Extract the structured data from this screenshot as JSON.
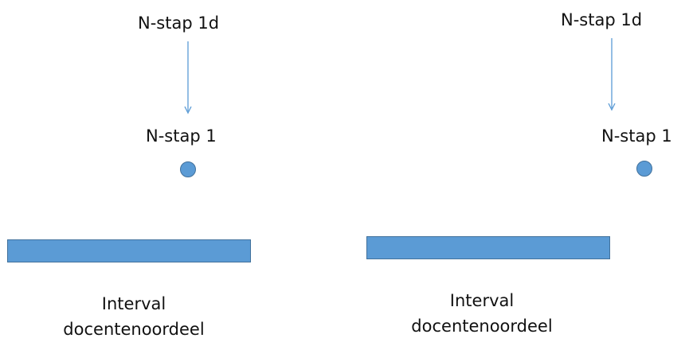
{
  "colors": {
    "shape_fill": "#5b9bd5",
    "shape_border": "#41719c",
    "arrow": "#5b9bd5",
    "text": "#111111"
  },
  "panels": [
    {
      "top_label": "N-stap 1d",
      "point_label": "N-stap 1",
      "caption_line1": "Interval",
      "caption_line2": "docentenoordeel"
    },
    {
      "top_label": "N-stap 1d",
      "point_label": "N-stap 1",
      "caption_line1": "Interval",
      "caption_line2": "docentenoordeel"
    }
  ]
}
